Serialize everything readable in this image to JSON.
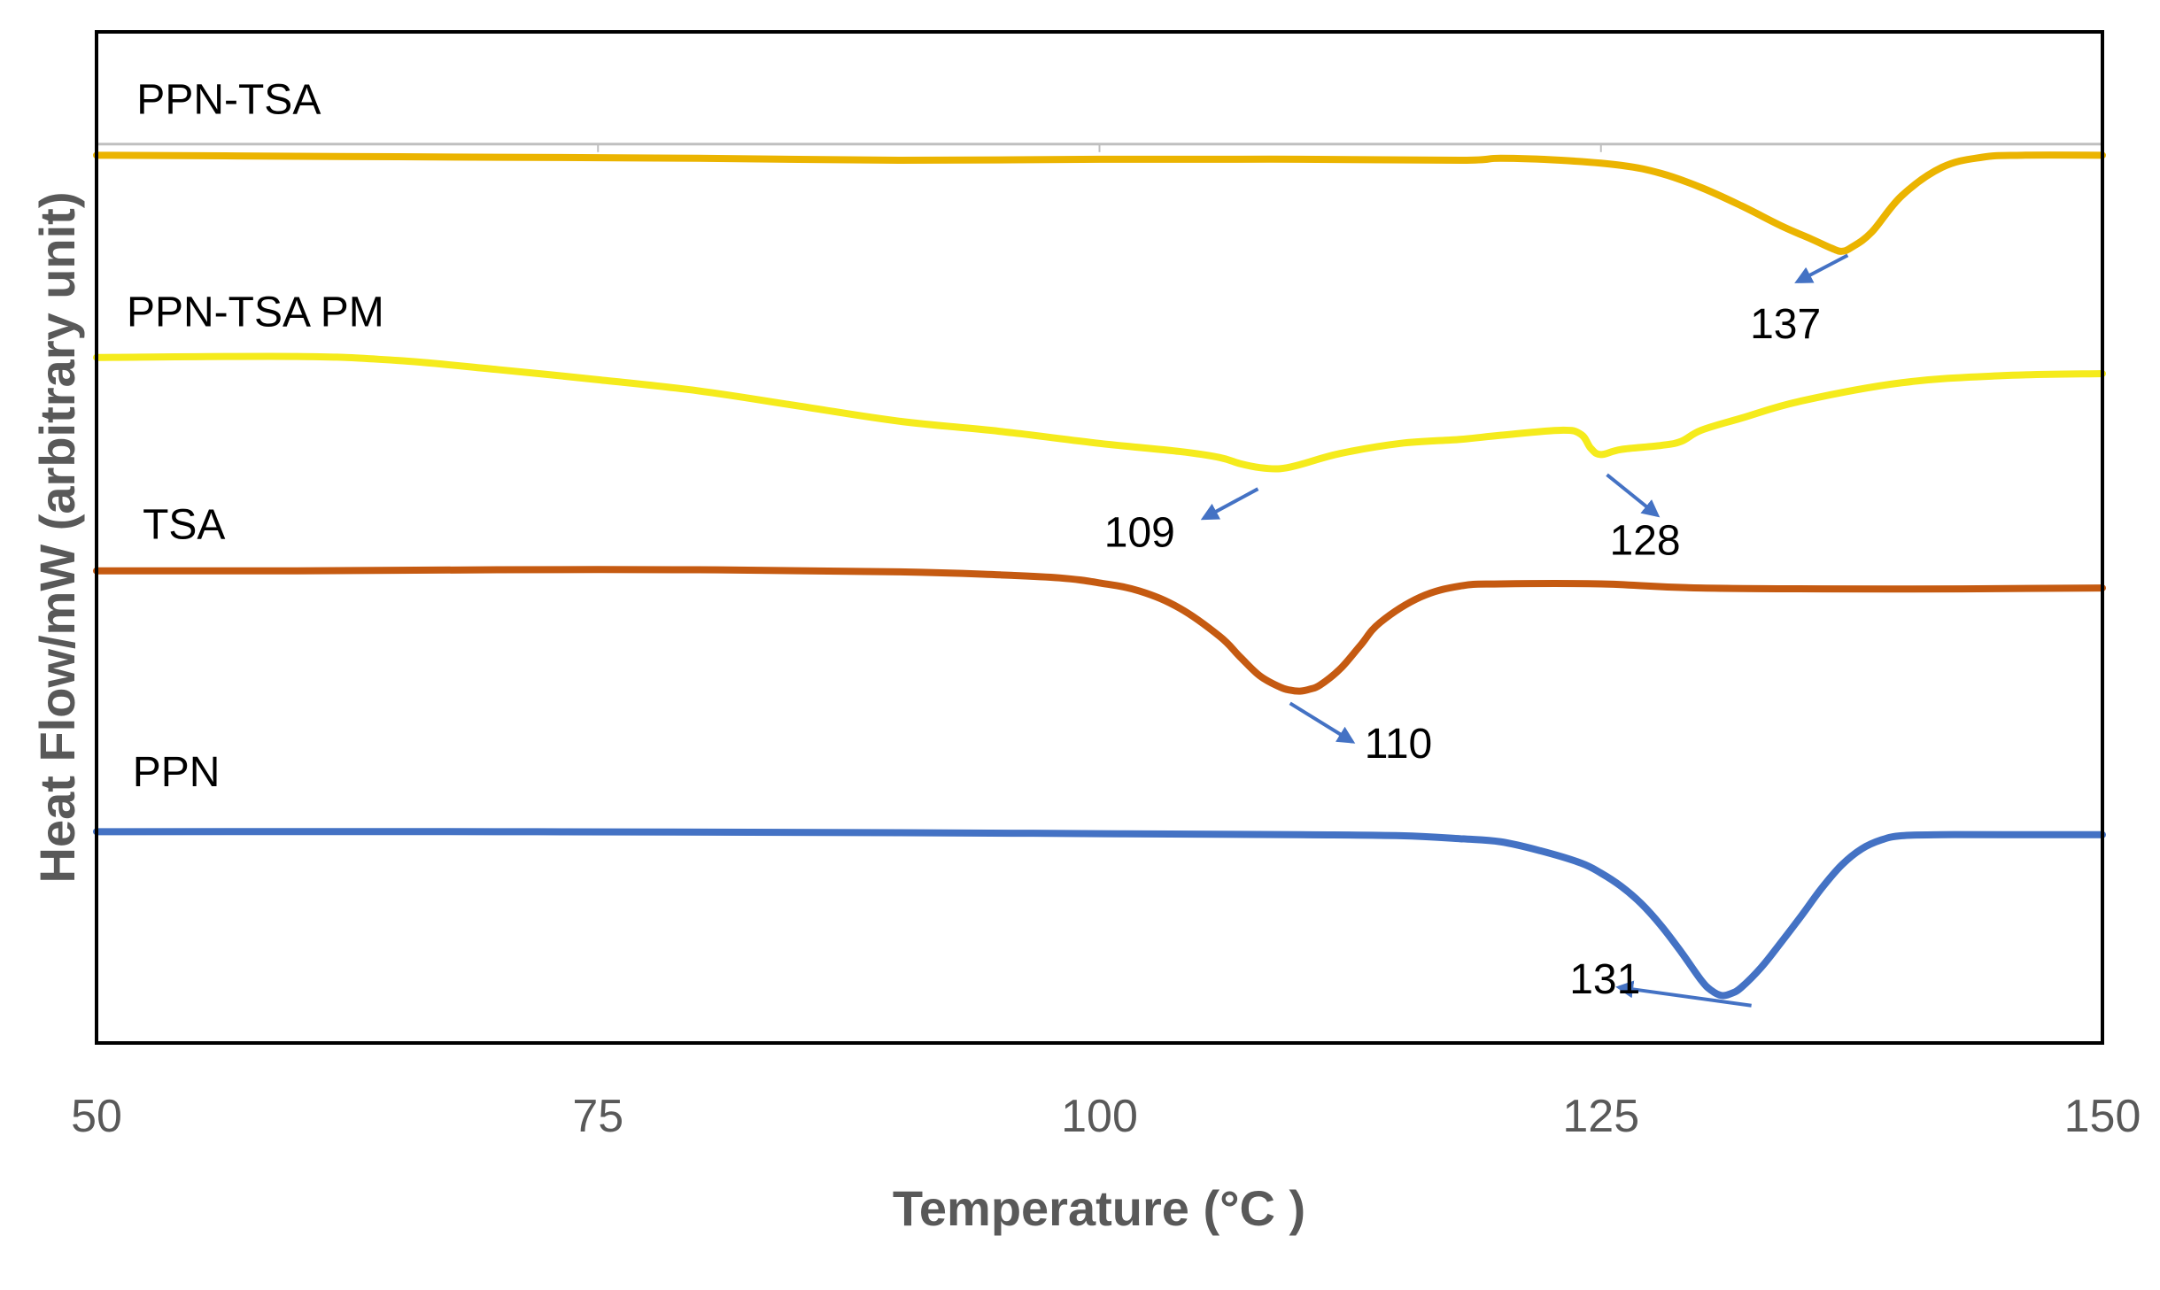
{
  "chart_data": {
    "type": "line",
    "title": "",
    "xlabel": "Temperature (°C )",
    "ylabel": "Heat Flow/mW (arbitrary unit)",
    "xlim": [
      50,
      150
    ],
    "xticks": [
      "50",
      "75",
      "100",
      "125",
      "150"
    ],
    "x_tick_values": [
      50,
      75,
      100,
      125,
      150
    ],
    "ylim": [
      0,
      100
    ],
    "y_tick_labels": false,
    "grid": false,
    "legend": "none",
    "series": [
      {
        "name": "PPN-TSA",
        "color": "#EBB400",
        "x": [
          50,
          60,
          70,
          80,
          90,
          100,
          110,
          118,
          120,
          123,
          126,
          128,
          130,
          132,
          134,
          135.5,
          136.5,
          137,
          137.5,
          138.5,
          140,
          142,
          144,
          146,
          150
        ],
        "y": [
          87.8,
          87.7,
          87.6,
          87.5,
          87.3,
          87.4,
          87.4,
          87.3,
          87.5,
          87.3,
          86.8,
          86.0,
          84.6,
          82.8,
          80.8,
          79.5,
          78.6,
          78.3,
          78.7,
          80.2,
          83.8,
          86.6,
          87.6,
          87.8,
          87.8
        ]
      },
      {
        "name": "PPN-TSA PM",
        "color": "#F5EB1C",
        "x": [
          50,
          60,
          65,
          70,
          75,
          80,
          85,
          90,
          95,
          100,
          104,
          106,
          107,
          108,
          109,
          110,
          112,
          115,
          118,
          120,
          123,
          124,
          124.5,
          125,
          126,
          128,
          129,
          130,
          132,
          135,
          140,
          145,
          150
        ],
        "y": [
          67.8,
          67.9,
          67.5,
          66.6,
          65.6,
          64.5,
          63.0,
          61.5,
          60.5,
          59.3,
          58.5,
          57.9,
          57.3,
          56.9,
          56.8,
          57.2,
          58.3,
          59.3,
          59.7,
          60.1,
          60.6,
          60.2,
          58.8,
          58.2,
          58.7,
          59.1,
          59.5,
          60.6,
          61.8,
          63.5,
          65.3,
          66.0,
          66.2
        ]
      },
      {
        "name": "TSA",
        "color": "#C55A11",
        "x": [
          50,
          60,
          70,
          80,
          90,
          95,
          98,
          100,
          102,
          104,
          106,
          107,
          108,
          109,
          109.5,
          110,
          110.5,
          111,
          112,
          113,
          114,
          116,
          118,
          120,
          125,
          130,
          140,
          150
        ],
        "y": [
          46.7,
          46.7,
          46.8,
          46.8,
          46.6,
          46.3,
          46.0,
          45.5,
          44.7,
          43.0,
          40.2,
          38.2,
          36.3,
          35.2,
          34.9,
          34.8,
          35.0,
          35.4,
          37.0,
          39.3,
          41.6,
          44.1,
          45.2,
          45.4,
          45.4,
          45.0,
          44.9,
          45.0
        ]
      },
      {
        "name": "PPN",
        "color": "#4472C4",
        "x": [
          50,
          70,
          90,
          100,
          110,
          115,
          118,
          120,
          122,
          124,
          125,
          126,
          127,
          128,
          129,
          130,
          130.5,
          131,
          131.5,
          132,
          133,
          134,
          135,
          136,
          137,
          138,
          139,
          140,
          142,
          145,
          150
        ],
        "y": [
          20.9,
          20.9,
          20.8,
          20.7,
          20.6,
          20.5,
          20.2,
          19.9,
          19.0,
          17.8,
          16.8,
          15.5,
          13.8,
          11.6,
          9.0,
          6.2,
          5.2,
          4.7,
          4.9,
          5.5,
          7.5,
          10.0,
          12.6,
          15.3,
          17.6,
          19.2,
          20.1,
          20.5,
          20.6,
          20.6,
          20.6
        ]
      }
    ],
    "series_labels": [
      {
        "series": "PPN-TSA",
        "text": "PPN-TSA",
        "x": 52,
        "y": 93.0
      },
      {
        "series": "PPN-TSA PM",
        "text": "PPN-TSA PM",
        "x": 51.5,
        "y": 72.0
      },
      {
        "series": "TSA",
        "text": "TSA",
        "x": 52.3,
        "y": 51.0
      },
      {
        "series": "PPN",
        "text": "PPN",
        "x": 51.8,
        "y": 26.5
      }
    ],
    "annotations": [
      {
        "text": "137",
        "series": "PPN-TSA",
        "x_value": 137,
        "label_x": 134.2,
        "label_y": 70.8,
        "arrow_from": [
          137.3,
          77.9
        ],
        "arrow_to": [
          134.8,
          75.3
        ]
      },
      {
        "text": "109",
        "series": "PPN-TSA PM",
        "x_value": 109,
        "label_x": 102.0,
        "label_y": 50.2,
        "arrow_from": [
          107.9,
          54.8
        ],
        "arrow_to": [
          105.2,
          51.9
        ]
      },
      {
        "text": "128",
        "series": "PPN-TSA PM",
        "x_value": 128,
        "label_x": 127.2,
        "label_y": 49.4,
        "arrow_from": [
          125.3,
          56.2
        ],
        "arrow_to": [
          127.8,
          52.2
        ]
      },
      {
        "text": "110",
        "series": "TSA",
        "x_value": 110,
        "label_x": 114.9,
        "label_y": 29.3,
        "arrow_from": [
          109.5,
          33.6
        ],
        "arrow_to": [
          112.6,
          29.8
        ]
      },
      {
        "text": "131",
        "series": "PPN",
        "x_value": 131,
        "label_x": 125.2,
        "label_y": 6.0,
        "arrow_from": [
          132.5,
          3.7
        ],
        "arrow_to": [
          125.9,
          5.5
        ]
      }
    ],
    "axis_colors": {
      "plot_border": "#000000",
      "tick_text": "#595959",
      "axis_title": "#595959",
      "annotation_arrow": "#4472C4",
      "top_gridline": "#BFBFBF"
    },
    "top_gridline_value": 88.9
  }
}
